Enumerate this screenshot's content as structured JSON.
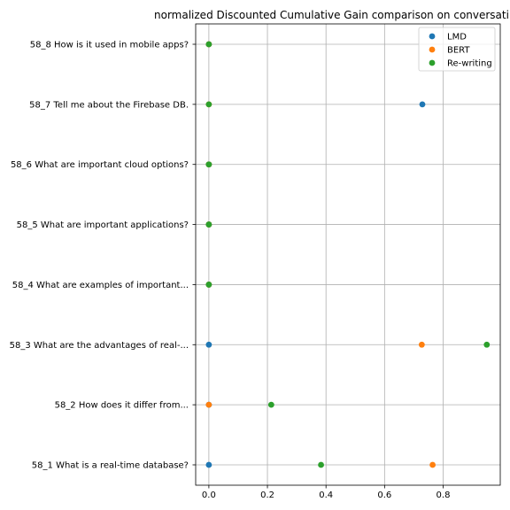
{
  "chart_data": {
    "type": "scatter",
    "title": "normalized Discounted Cumulative Gain comparison on conversati",
    "xlabel": "",
    "ylabel": "",
    "xlim": [
      -0.045,
      0.995
    ],
    "xticks": [
      0.0,
      0.2,
      0.4,
      0.6,
      0.8
    ],
    "xtick_labels": [
      "0.0",
      "0.2",
      "0.4",
      "0.6",
      "0.8"
    ],
    "categories": [
      "58_1 What is a real-time database?",
      "58_2 How does it differ from...",
      "58_3 What are the advantages of real-...",
      "58_4 What are examples of important...",
      "58_5 What are important applications?",
      "58_6 What are important cloud options?",
      "58_7 Tell me about the Firebase DB.",
      "58_8 How is it used in mobile apps?"
    ],
    "grid": true,
    "legend_position": "top-right",
    "series": [
      {
        "name": "LMD",
        "color": "#1f77b4",
        "values": [
          0.0,
          0.0,
          0.0,
          0.0,
          0.0,
          0.0,
          0.729,
          0.0
        ]
      },
      {
        "name": "BERT",
        "color": "#ff7f0e",
        "values": [
          0.764,
          0.0,
          0.727,
          0.0,
          0.0,
          0.0,
          0.0,
          0.0
        ]
      },
      {
        "name": "Re-writing",
        "color": "#2ca02c",
        "values": [
          0.383,
          0.213,
          0.949,
          0.0,
          0.0,
          0.0,
          0.0,
          0.0
        ]
      }
    ]
  }
}
